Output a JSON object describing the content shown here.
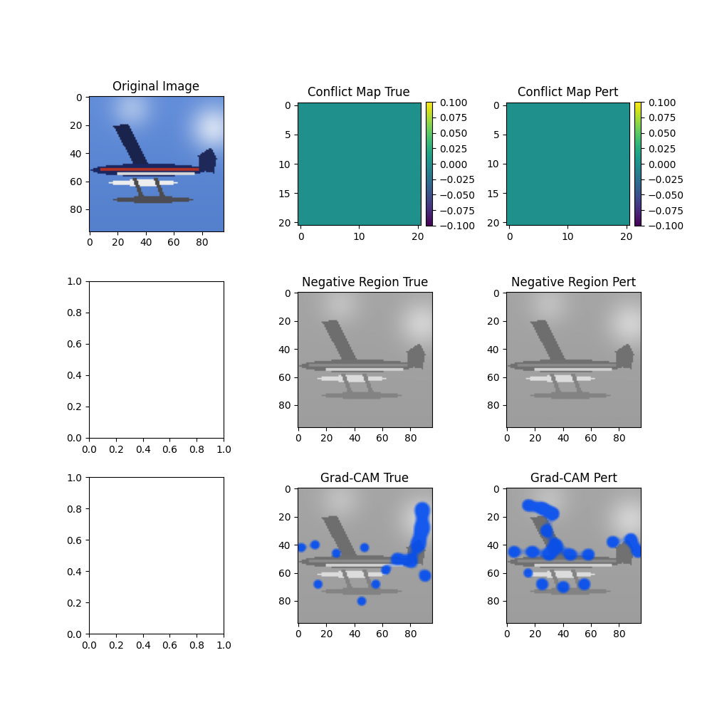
{
  "chart_data": [
    {
      "type": "image",
      "title": "Original Image",
      "xlim": [
        -0.5,
        95.5
      ],
      "ylim": [
        95.5,
        -0.5
      ],
      "xticks": [
        0,
        20,
        40,
        60,
        80
      ],
      "yticks": [
        0,
        20,
        40,
        60,
        80
      ]
    },
    {
      "type": "heatmap",
      "title": "Conflict Map True",
      "xlim": [
        -0.5,
        20.5
      ],
      "ylim": [
        20.5,
        -0.5
      ],
      "xticks": [
        0,
        10,
        20
      ],
      "yticks": [
        0,
        5,
        10,
        15,
        20
      ],
      "cells": [
        [
          0,
          0,
          0,
          0,
          0,
          0,
          0,
          0,
          0,
          0,
          0,
          0,
          0,
          0,
          0,
          0,
          0,
          0,
          0,
          0,
          0
        ],
        [
          0,
          0,
          0,
          0,
          0,
          0,
          0,
          0,
          0,
          0,
          0,
          0,
          0,
          0,
          0,
          0,
          0,
          0,
          0,
          0,
          0
        ],
        [
          0,
          0,
          0,
          0,
          0,
          0,
          0,
          0,
          0,
          0,
          0,
          0,
          0,
          0,
          0,
          0,
          0,
          0,
          0,
          0,
          0
        ],
        [
          0,
          0,
          0,
          0,
          0,
          0,
          0,
          0,
          0,
          0,
          0,
          0,
          0,
          0,
          0,
          0,
          0,
          0,
          0,
          0,
          0
        ],
        [
          0,
          0,
          0,
          0,
          0,
          0,
          0,
          0,
          0,
          0,
          0,
          0,
          0,
          0,
          0,
          0,
          0,
          0,
          0,
          0,
          0
        ],
        [
          0,
          0,
          0,
          0,
          0,
          0,
          0,
          0,
          0,
          0,
          0,
          0,
          0,
          0,
          0,
          0,
          0,
          0,
          0,
          0,
          0
        ],
        [
          0,
          0,
          0,
          0,
          0,
          0,
          0,
          0,
          0,
          0,
          0,
          0,
          0,
          0,
          0,
          0,
          0,
          0,
          0,
          0,
          0
        ],
        [
          0,
          0,
          0,
          0,
          0,
          0,
          0,
          0,
          0,
          0,
          0,
          0,
          0,
          0,
          0,
          0,
          0,
          0,
          0,
          0,
          0
        ],
        [
          0,
          0,
          0,
          0,
          0,
          0,
          0,
          0,
          0,
          0,
          0,
          0,
          0,
          0,
          0,
          0,
          0,
          0,
          0,
          0,
          0
        ],
        [
          0,
          0,
          0,
          0,
          0,
          0,
          0,
          0,
          0,
          0,
          0,
          0,
          0,
          0,
          0,
          0,
          0,
          0,
          0,
          0,
          0
        ],
        [
          0,
          0,
          0,
          0,
          0,
          0,
          0,
          0,
          0,
          0,
          0,
          0,
          0,
          0,
          0,
          0,
          0,
          0,
          0,
          0,
          0
        ],
        [
          0,
          0,
          0,
          0,
          0,
          0,
          0,
          0,
          0,
          0,
          0,
          0,
          0,
          0,
          0,
          0,
          0,
          0,
          0,
          0,
          0
        ],
        [
          0,
          0,
          0,
          0,
          0,
          0,
          0,
          0,
          0,
          0,
          0,
          0,
          0,
          0,
          0,
          0,
          0,
          0,
          0,
          0,
          0
        ],
        [
          0,
          0,
          0,
          0,
          0,
          0,
          0,
          0,
          0,
          0,
          0,
          0,
          0,
          0,
          0,
          0,
          0,
          0,
          0,
          0,
          0
        ],
        [
          0,
          0,
          0,
          0,
          0,
          0,
          0,
          0,
          0,
          0,
          0,
          0,
          0,
          0,
          0,
          0,
          0,
          0,
          0,
          0,
          0
        ],
        [
          0,
          0,
          0,
          0,
          0,
          0,
          0,
          0,
          0,
          0,
          0,
          0,
          0,
          0,
          0,
          0,
          0,
          0,
          0,
          0,
          0
        ],
        [
          0,
          0,
          0,
          0,
          0,
          0,
          0,
          0,
          0,
          0,
          0,
          0,
          0,
          0,
          0,
          0,
          0,
          0,
          0,
          0,
          0
        ],
        [
          0,
          0,
          0,
          0,
          0,
          0,
          0,
          0,
          0,
          0,
          0,
          0,
          0,
          0,
          0,
          0,
          0,
          0,
          0,
          0,
          0
        ],
        [
          0,
          0,
          0,
          0,
          0,
          0,
          0,
          0,
          0,
          0,
          0,
          0,
          0,
          0,
          0,
          0,
          0,
          0,
          0,
          0,
          0
        ],
        [
          0,
          0,
          0,
          0,
          0,
          0,
          0,
          0,
          0,
          0,
          0,
          0,
          0,
          0,
          0,
          0,
          0,
          0,
          0,
          0,
          0
        ],
        [
          0,
          0,
          0,
          0,
          0,
          0,
          0,
          0,
          0,
          0,
          0,
          0,
          0,
          0,
          0,
          0,
          0,
          0,
          0,
          0,
          0
        ]
      ],
      "colorbar": {
        "range": [
          -0.1,
          0.1
        ],
        "ticks": [
          {
            "value": -0.1,
            "label": "−0.100"
          },
          {
            "value": -0.075,
            "label": "−0.075"
          },
          {
            "value": -0.05,
            "label": "−0.050"
          },
          {
            "value": -0.025,
            "label": "−0.025"
          },
          {
            "value": 0,
            "label": "0.000"
          },
          {
            "value": 0.025,
            "label": "0.025"
          },
          {
            "value": 0.05,
            "label": "0.050"
          },
          {
            "value": 0.075,
            "label": "0.075"
          },
          {
            "value": 0.1,
            "label": "0.100"
          }
        ]
      }
    },
    {
      "type": "heatmap",
      "title": "Conflict Map Pert",
      "xlim": [
        -0.5,
        20.5
      ],
      "ylim": [
        20.5,
        -0.5
      ],
      "xticks": [
        0,
        10,
        20
      ],
      "yticks": [
        0,
        5,
        10,
        15,
        20
      ],
      "cells": [
        [
          0,
          0,
          0,
          0,
          0,
          0,
          0,
          0,
          0,
          0,
          0,
          0,
          0,
          0,
          0,
          0,
          0,
          0,
          0,
          0,
          0
        ],
        [
          0,
          0,
          0,
          0,
          0,
          0,
          0,
          0,
          0,
          0,
          0,
          0,
          0,
          0,
          0,
          0,
          0,
          0,
          0,
          0,
          0
        ],
        [
          0,
          0,
          0,
          0,
          0,
          0,
          0,
          0,
          0,
          0,
          0,
          0,
          0,
          0,
          0,
          0,
          0,
          0,
          0,
          0,
          0
        ],
        [
          0,
          0,
          0,
          0,
          0,
          0,
          0,
          0,
          0,
          0,
          0,
          0,
          0,
          0,
          0,
          0,
          0,
          0,
          0,
          0,
          0
        ],
        [
          0,
          0,
          0,
          0,
          0,
          0,
          0,
          0,
          0,
          0,
          0,
          0,
          0,
          0,
          0,
          0,
          0,
          0,
          0,
          0,
          0
        ],
        [
          0,
          0,
          0,
          0,
          0,
          0,
          0,
          0,
          0,
          0,
          0,
          0,
          0,
          0,
          0,
          0,
          0,
          0,
          0,
          0,
          0
        ],
        [
          0,
          0,
          0,
          0,
          0,
          0,
          0,
          0,
          0,
          0,
          0,
          0,
          0,
          0,
          0,
          0,
          0,
          0,
          0,
          0,
          0
        ],
        [
          0,
          0,
          0,
          0,
          0,
          0,
          0,
          0,
          0,
          0,
          0,
          0,
          0,
          0,
          0,
          0,
          0,
          0,
          0,
          0,
          0
        ],
        [
          0,
          0,
          0,
          0,
          0,
          0,
          0,
          0,
          0,
          0,
          0,
          0,
          0,
          0,
          0,
          0,
          0,
          0,
          0,
          0,
          0
        ],
        [
          0,
          0,
          0,
          0,
          0,
          0,
          0,
          0,
          0,
          0,
          0,
          0,
          0,
          0,
          0,
          0,
          0,
          0,
          0,
          0,
          0
        ],
        [
          0,
          0,
          0,
          0,
          0,
          0,
          0,
          0,
          0,
          0,
          0,
          0,
          0,
          0,
          0,
          0,
          0,
          0,
          0,
          0,
          0
        ],
        [
          0,
          0,
          0,
          0,
          0,
          0,
          0,
          0,
          0,
          0,
          0,
          0,
          0,
          0,
          0,
          0,
          0,
          0,
          0,
          0,
          0
        ],
        [
          0,
          0,
          0,
          0,
          0,
          0,
          0,
          0,
          0,
          0,
          0,
          0,
          0,
          0,
          0,
          0,
          0,
          0,
          0,
          0,
          0
        ],
        [
          0,
          0,
          0,
          0,
          0,
          0,
          0,
          0,
          0,
          0,
          0,
          0,
          0,
          0,
          0,
          0,
          0,
          0,
          0,
          0,
          0
        ],
        [
          0,
          0,
          0,
          0,
          0,
          0,
          0,
          0,
          0,
          0,
          0,
          0,
          0,
          0,
          0,
          0,
          0,
          0,
          0,
          0,
          0
        ],
        [
          0,
          0,
          0,
          0,
          0,
          0,
          0,
          0,
          0,
          0,
          0,
          0,
          0,
          0,
          0,
          0,
          0,
          0,
          0,
          0,
          0
        ],
        [
          0,
          0,
          0,
          0,
          0,
          0,
          0,
          0,
          0,
          0,
          0,
          0,
          0,
          0,
          0,
          0,
          0,
          0,
          0,
          0,
          0
        ],
        [
          0,
          0,
          0,
          0,
          0,
          0,
          0,
          0,
          0,
          0,
          0,
          0,
          0,
          0,
          0,
          0,
          0,
          0,
          0,
          0,
          0
        ],
        [
          0,
          0,
          0,
          0,
          0,
          0,
          0,
          0,
          0,
          0,
          0,
          0,
          0,
          0,
          0,
          0,
          0,
          0,
          0,
          0,
          0
        ],
        [
          0,
          0,
          0,
          0,
          0,
          0,
          0,
          0,
          0,
          0,
          0,
          0,
          0,
          0,
          0,
          0,
          0,
          0,
          0,
          0,
          0
        ],
        [
          0,
          0,
          0,
          0,
          0,
          0,
          0,
          0,
          0,
          0,
          0,
          0,
          0,
          0,
          0,
          0,
          0,
          0,
          0,
          0,
          0
        ]
      ],
      "colorbar": {
        "range": [
          -0.1,
          0.1
        ],
        "ticks": [
          {
            "value": -0.1,
            "label": "−0.100"
          },
          {
            "value": -0.075,
            "label": "−0.075"
          },
          {
            "value": -0.05,
            "label": "−0.050"
          },
          {
            "value": -0.025,
            "label": "−0.025"
          },
          {
            "value": 0,
            "label": "0.000"
          },
          {
            "value": 0.025,
            "label": "0.025"
          },
          {
            "value": 0.05,
            "label": "0.050"
          },
          {
            "value": 0.075,
            "label": "0.075"
          },
          {
            "value": 0.1,
            "label": "0.100"
          }
        ]
      }
    },
    {
      "type": "blank",
      "xlim": [
        0,
        1
      ],
      "ylim": [
        0,
        1
      ],
      "xticks": [
        {
          "value": 0,
          "label": "0.0"
        },
        0.2,
        0.4,
        0.6,
        0.8,
        {
          "value": 1,
          "label": "1.0"
        }
      ],
      "yticks": [
        {
          "value": 0,
          "label": "0.0"
        },
        0.2,
        0.4,
        0.6,
        0.8,
        {
          "value": 1,
          "label": "1.0"
        }
      ]
    },
    {
      "type": "image",
      "title": "Negative Region True",
      "xlim": [
        -0.5,
        95.5
      ],
      "ylim": [
        95.5,
        -0.5
      ],
      "xticks": [
        0,
        20,
        40,
        60,
        80
      ],
      "yticks": [
        0,
        20,
        40,
        60,
        80
      ]
    },
    {
      "type": "image",
      "title": "Negative Region Pert",
      "xlim": [
        -0.5,
        95.5
      ],
      "ylim": [
        95.5,
        -0.5
      ],
      "xticks": [
        0,
        20,
        40,
        60,
        80
      ],
      "yticks": [
        0,
        20,
        40,
        60,
        80
      ]
    },
    {
      "type": "blank",
      "xlim": [
        0,
        1
      ],
      "ylim": [
        0,
        1
      ],
      "xticks": [
        {
          "value": 0,
          "label": "0.0"
        },
        0.2,
        0.4,
        0.6,
        0.8,
        {
          "value": 1,
          "label": "1.0"
        }
      ],
      "yticks": [
        {
          "value": 0,
          "label": "0.0"
        },
        0.2,
        0.4,
        0.6,
        0.8,
        {
          "value": 1,
          "label": "1.0"
        }
      ]
    },
    {
      "type": "image",
      "title": "Grad-CAM True",
      "xlim": [
        -0.5,
        95.5
      ],
      "ylim": [
        95.5,
        -0.5
      ],
      "xticks": [
        0,
        20,
        40,
        60,
        80
      ],
      "yticks": [
        0,
        20,
        40,
        60,
        80
      ]
    },
    {
      "type": "image",
      "title": "Grad-CAM Pert",
      "xlim": [
        -0.5,
        95.5
      ],
      "ylim": [
        95.5,
        -0.5
      ],
      "xticks": [
        0,
        20,
        40,
        60,
        80
      ],
      "yticks": [
        0,
        20,
        40,
        60,
        80
      ]
    }
  ]
}
